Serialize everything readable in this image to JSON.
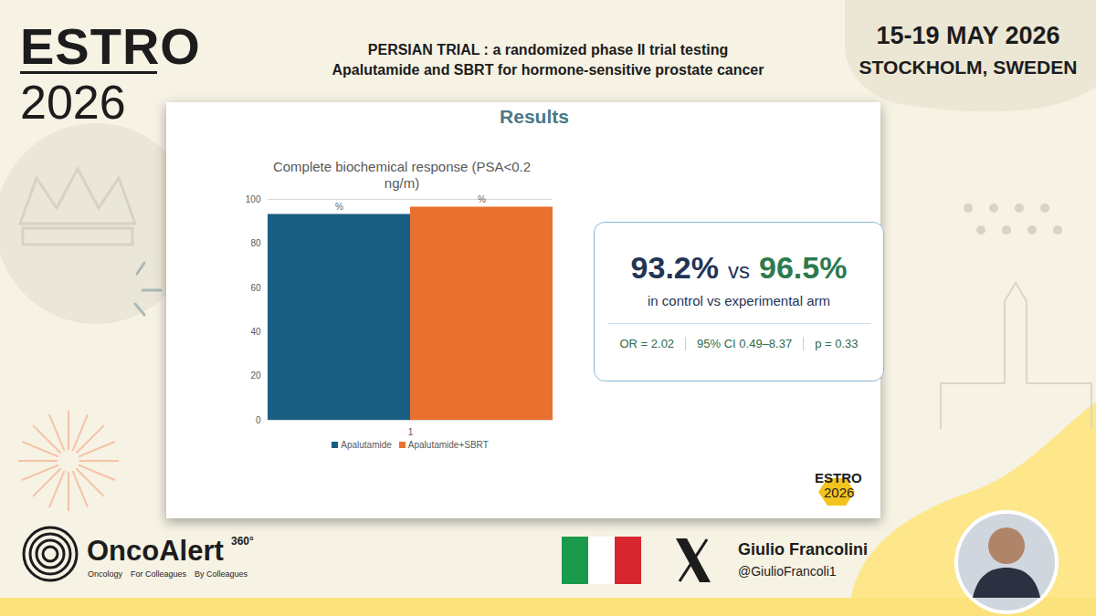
{
  "page": {
    "logo": {
      "name": "ESTRO",
      "year": "2026"
    },
    "title": [
      "PERSIAN TRIAL : a randomized phase II trial testing",
      "Apalutamide and SBRT for hormone-sensitive prostate cancer"
    ],
    "dates": "15-19 MAY 2026",
    "place": "STOCKHOLM, SWEDEN",
    "slide": {
      "heading": "Results",
      "logo": {
        "name": "ESTRO",
        "year": "2026"
      },
      "box": {
        "figures": [
          "93.2%",
          "vs",
          "96.5%"
        ],
        "caption": "in control vs experimental arm",
        "stats": [
          "OR = 2.02",
          "95% CI 0.49–8.37",
          "p = 0.33"
        ]
      }
    },
    "footer": {
      "brand": "OncoAlert",
      "brand_mark": "360°",
      "tagline": [
        "Oncology",
        "For Colleagues",
        "By Colleagues"
      ],
      "author": "Giulio Francolini",
      "handle": "@GiulioFrancoli1"
    }
  },
  "chart_data": {
    "type": "bar",
    "title": "Complete biochemical response (PSA<0.2 ng/m)",
    "categories": [
      "1"
    ],
    "series": [
      {
        "name": "Apalutamide",
        "color": "#1b5e83",
        "values": [
          93.2
        ],
        "value_labels": [
          "%"
        ]
      },
      {
        "name": "Apalutamide+SBRT",
        "color": "#e8712f",
        "values": [
          96.5
        ],
        "value_labels": [
          "%"
        ]
      }
    ],
    "ylim": [
      0,
      100
    ],
    "yticks": [
      0,
      20,
      40,
      60,
      80,
      100
    ],
    "grid": true,
    "legend": "bottom",
    "data_labels": true
  }
}
